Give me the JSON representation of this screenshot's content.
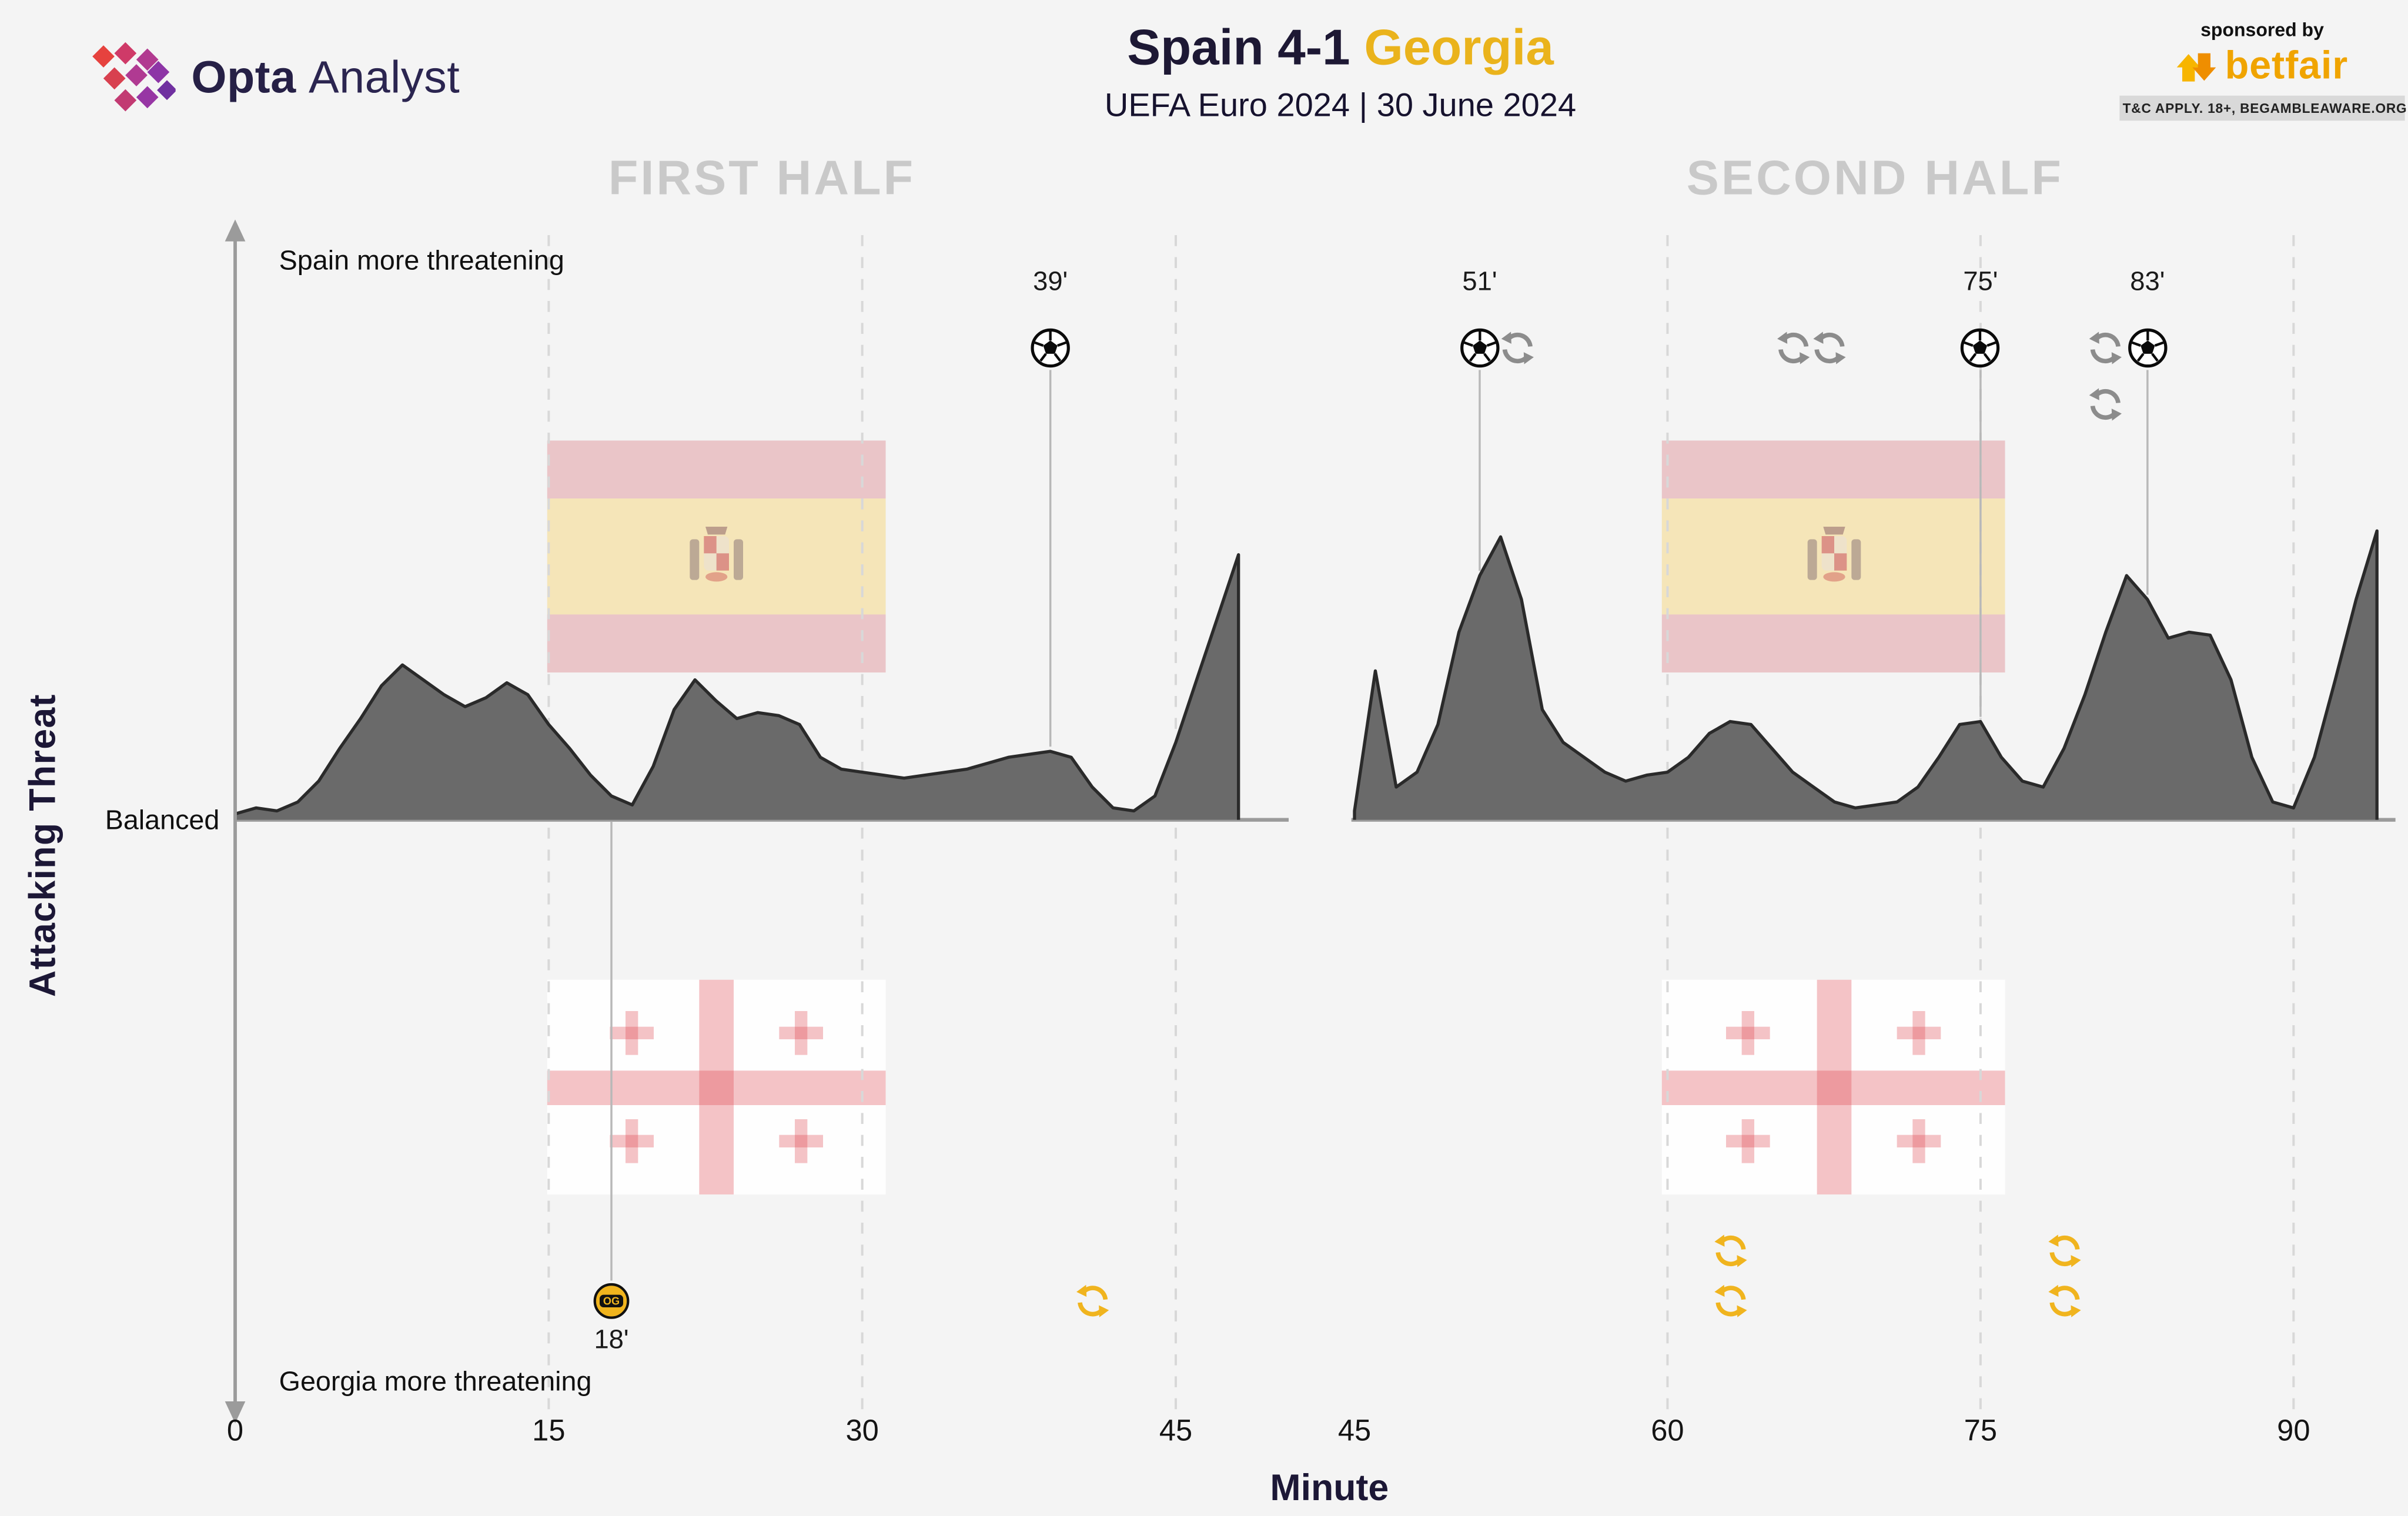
{
  "header": {
    "brand": {
      "bold": "Opta",
      "light": "Analyst"
    },
    "title": {
      "home": "Spain",
      "score": "4-1",
      "away": "Georgia"
    },
    "subtitle": "UEFA Euro 2024 | 30 June 2024",
    "sponsor": {
      "tagline": "sponsored by",
      "name": "betfair",
      "terms": "T&C APPLY. 18+, BEGAMBLEAWARE.ORG"
    }
  },
  "axes": {
    "y_title": "Attacking Threat",
    "top_label": "Spain more threatening",
    "mid_label": "Balanced",
    "bottom_label": "Georgia more threatening",
    "x_title": "Minute"
  },
  "chart_data": {
    "type": "area",
    "description": "Attacking threat momentum per minute. Positive values = Spain more threatening, 0 = balanced, negative would be Georgia more threatening. Relative 0-100 scale.",
    "ylim": [
      -100,
      100
    ],
    "step_minutes": 1,
    "panels": [
      {
        "title": "FIRST HALF",
        "x_start": 0,
        "x_end": 48,
        "ticks": [
          0,
          15,
          30,
          45
        ],
        "gridlines": [
          15,
          30,
          45
        ],
        "values": [
          2,
          4,
          3,
          6,
          13,
          24,
          34,
          45,
          52,
          47,
          42,
          38,
          41,
          46,
          42,
          32,
          24,
          15,
          8,
          5,
          18,
          37,
          47,
          40,
          34,
          36,
          35,
          32,
          21,
          17,
          16,
          15,
          14,
          15,
          16,
          17,
          19,
          21,
          22,
          23,
          21,
          11,
          4,
          3,
          8,
          26,
          47,
          68,
          89
        ]
      },
      {
        "title": "SECOND HALF",
        "x_start": 45,
        "x_end": 94,
        "ticks": [
          45,
          60,
          75,
          90
        ],
        "gridlines": [
          60,
          75,
          90
        ],
        "values": [
          3,
          50,
          11,
          16,
          32,
          63,
          82,
          95,
          74,
          37,
          26,
          21,
          16,
          13,
          15,
          16,
          21,
          29,
          33,
          32,
          24,
          16,
          11,
          6,
          4,
          5,
          6,
          11,
          21,
          32,
          33,
          21,
          13,
          11,
          24,
          42,
          63,
          82,
          74,
          61,
          63,
          62,
          47,
          21,
          6,
          4,
          21,
          47,
          74,
          97
        ]
      }
    ],
    "events": [
      {
        "panel": 0,
        "team": "Georgia",
        "type": "own_goal",
        "minute": 18,
        "label": "18'",
        "marker_text": "OG",
        "line": true
      },
      {
        "panel": 0,
        "team": "Spain",
        "type": "goal",
        "minute": 39,
        "label": "39'",
        "line": true
      },
      {
        "panel": 0,
        "team": "Georgia",
        "type": "sub",
        "minute": 41
      },
      {
        "panel": 1,
        "team": "Spain",
        "type": "goal",
        "minute": 51,
        "label": "51'",
        "line": true
      },
      {
        "panel": 1,
        "team": "Spain",
        "type": "sub",
        "minute": 51,
        "dx": 24
      },
      {
        "panel": 1,
        "team": "Georgia",
        "type": "sub",
        "minute": 63,
        "dy": -32
      },
      {
        "panel": 1,
        "team": "Georgia",
        "type": "sub",
        "minute": 63
      },
      {
        "panel": 1,
        "team": "Spain",
        "type": "sub",
        "minute": 66
      },
      {
        "panel": 1,
        "team": "Spain",
        "type": "sub",
        "minute": 67.8
      },
      {
        "panel": 1,
        "team": "Spain",
        "type": "goal",
        "minute": 75,
        "label": "75'",
        "line": true
      },
      {
        "panel": 1,
        "team": "Georgia",
        "type": "sub",
        "minute": 79,
        "dy": -32
      },
      {
        "panel": 1,
        "team": "Georgia",
        "type": "sub",
        "minute": 79
      },
      {
        "panel": 1,
        "team": "Spain",
        "type": "sub",
        "minute": 81
      },
      {
        "panel": 1,
        "team": "Spain",
        "type": "sub",
        "minute": 81,
        "dy": 36
      },
      {
        "panel": 1,
        "team": "Spain",
        "type": "goal",
        "minute": 83,
        "label": "83'",
        "line": true
      }
    ],
    "colors": {
      "area_fill": "#6a6a6a",
      "area_stroke": "#2a2a2a",
      "grid": "#d8d8d8",
      "axis": "#9b9b9b",
      "event_line": "#b8b8b8",
      "spain_sub": "#8c8c8c",
      "georgia_accent": "#f0b41e",
      "navy": "#1d1834",
      "gold": "#eab31c"
    }
  }
}
